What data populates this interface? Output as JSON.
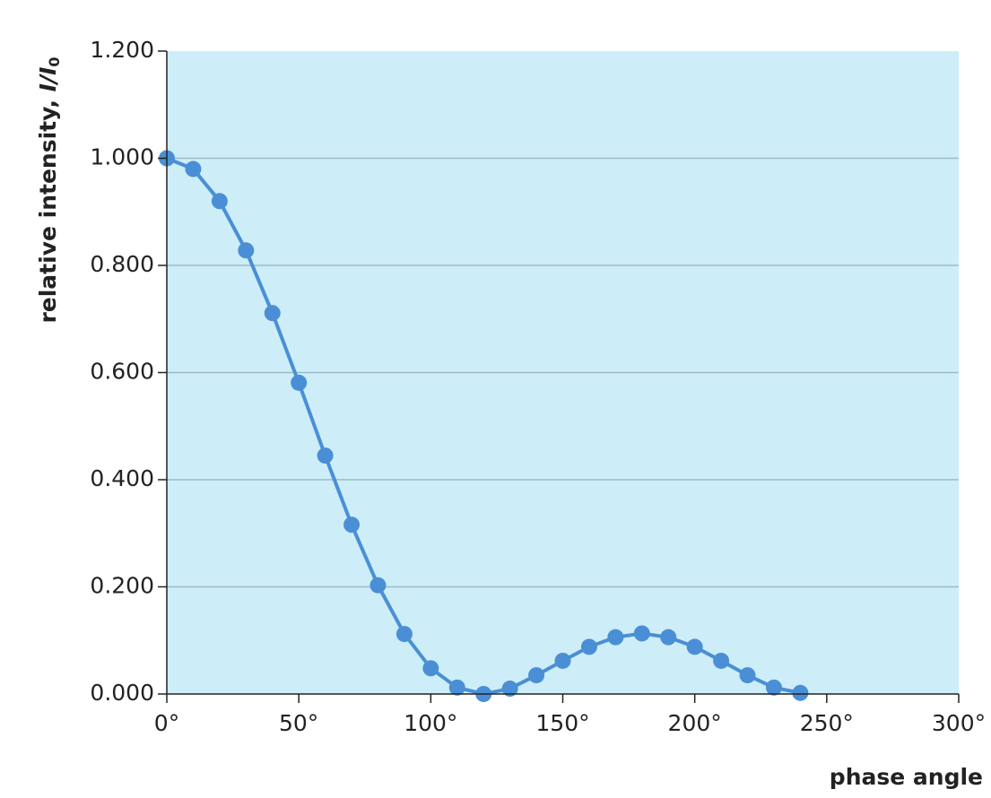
{
  "chart_data": {
    "type": "line",
    "xlabel": "phase angle",
    "ylabel": {
      "text": "relative intensity, ",
      "symbol": "I/I",
      "subscript": "0"
    },
    "x": [
      0,
      10,
      20,
      30,
      40,
      50,
      60,
      70,
      80,
      90,
      100,
      110,
      120,
      130,
      140,
      150,
      160,
      170,
      180,
      190,
      200,
      210,
      220,
      230,
      240
    ],
    "series": [
      {
        "color": "#4a8fd6",
        "values": [
          1.0,
          0.98,
          0.92,
          0.828,
          0.711,
          0.581,
          0.445,
          0.316,
          0.203,
          0.112,
          0.048,
          0.012,
          0.0,
          0.01,
          0.035,
          0.062,
          0.088,
          0.106,
          0.113,
          0.106,
          0.088,
          0.062,
          0.035,
          0.012,
          0.002
        ]
      }
    ],
    "xlim": [
      0,
      300
    ],
    "xticks": [
      {
        "value": 0,
        "label": "0°"
      },
      {
        "value": 50,
        "label": "50°"
      },
      {
        "value": 100,
        "label": "100°"
      },
      {
        "value": 150,
        "label": "150°"
      },
      {
        "value": 200,
        "label": "200°"
      },
      {
        "value": 250,
        "label": "250°"
      },
      {
        "value": 300,
        "label": "300°"
      }
    ],
    "ylim": [
      0,
      1.2
    ],
    "yticks": [
      {
        "value": 0,
        "label": "0.000"
      },
      {
        "value": 0.2,
        "label": "0.200"
      },
      {
        "value": 0.4,
        "label": "0.400"
      },
      {
        "value": 0.6,
        "label": "0.600"
      },
      {
        "value": 0.8,
        "label": "0.800"
      },
      {
        "value": 1.0,
        "label": "1.000"
      },
      {
        "value": 1.2,
        "label": "1.200"
      }
    ],
    "grid": true,
    "background": "#cdeef8"
  }
}
